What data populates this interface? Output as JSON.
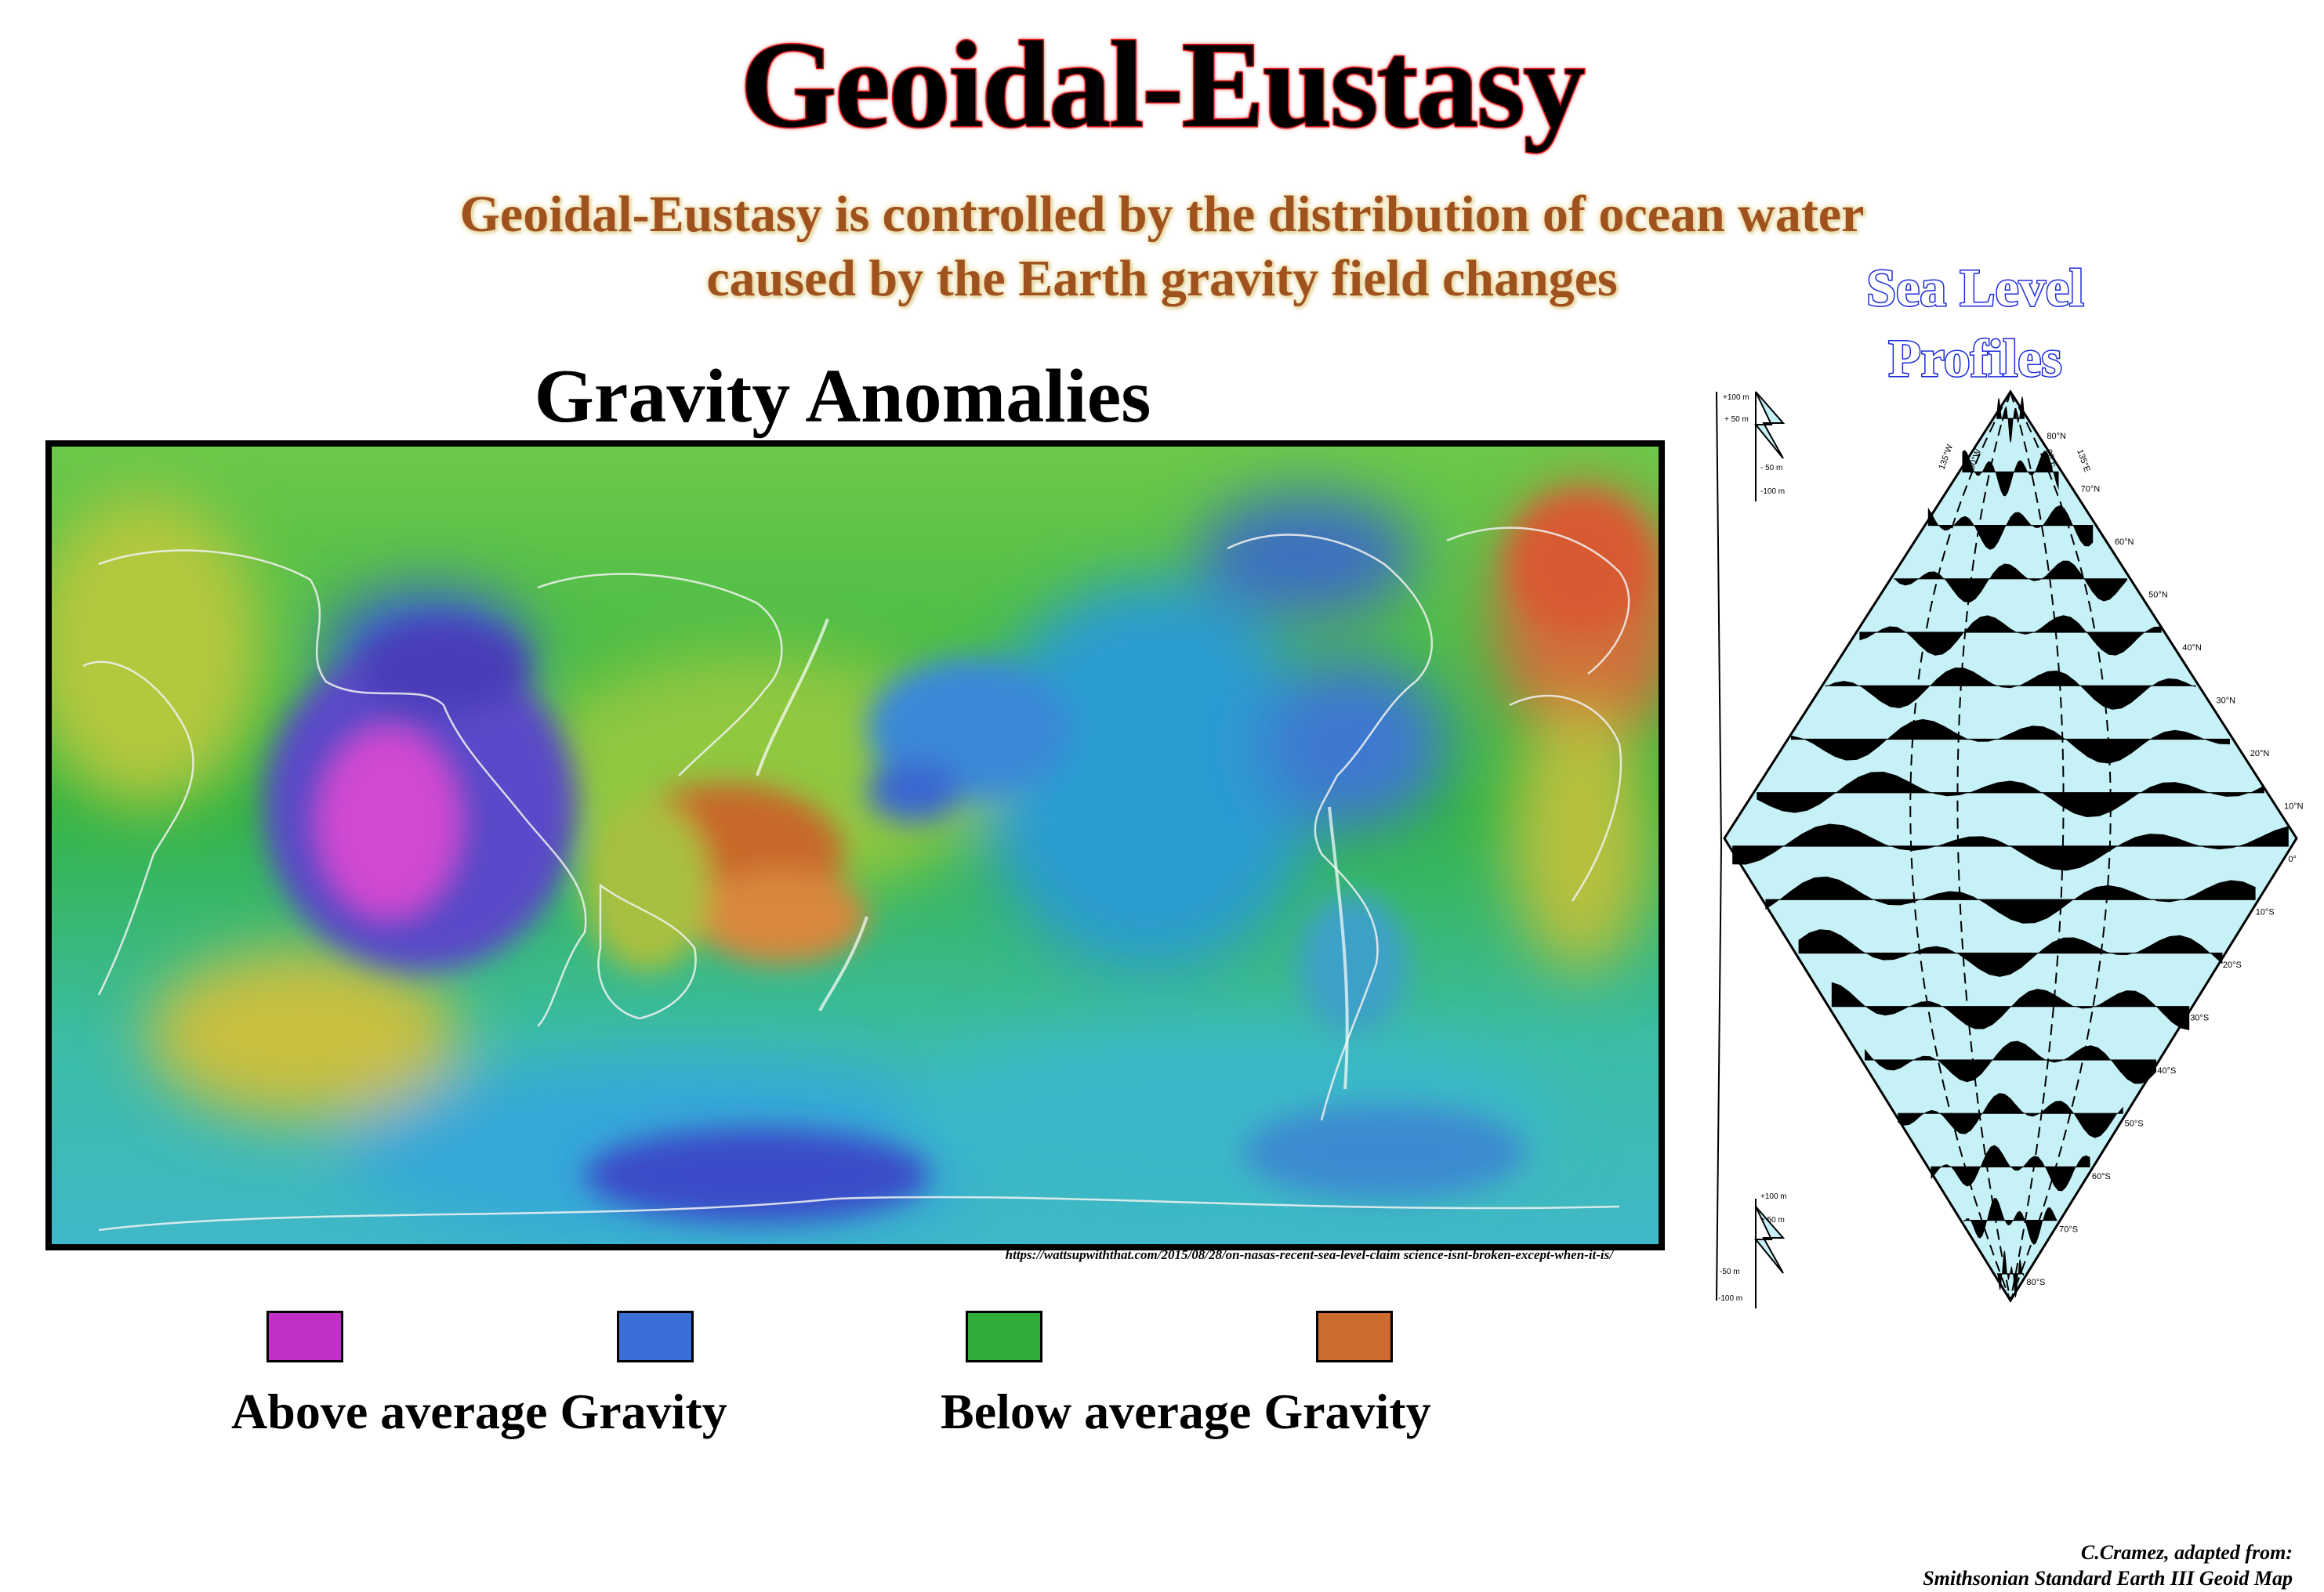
{
  "title": "Geoidal-Eustasy",
  "subtitle": {
    "line1": "Geoidal-Eustasy is controlled by the distribution of ocean water",
    "line2": "caused by the Earth gravity field changes"
  },
  "map": {
    "heading": "Gravity Anomalies",
    "source": "https://wattsupwiththat.com/2015/08/28/on-nasas-recent-sea-level-claim science-isnt-broken-except-when-it-is/"
  },
  "legend": {
    "swatches": [
      {
        "name": "magenta",
        "color": "#c030c8"
      },
      {
        "name": "blue",
        "color": "#3a6fd8"
      },
      {
        "name": "green",
        "color": "#2fae3a"
      },
      {
        "name": "orange",
        "color": "#cc6a30"
      }
    ],
    "above_label": "Above average Gravity",
    "below_label": "Below average Gravity"
  },
  "profiles": {
    "title_line1": "Sea Level",
    "title_line2": "Profiles",
    "fill_color": "#c6f1f6",
    "scale_top": [
      "+100 m",
      "+ 50 m",
      "- 50 m",
      "-100 m"
    ],
    "scale_bottom": [
      "+100 m",
      "+ 50 m",
      "-50 m",
      "-100 m"
    ],
    "meridian_labels": [
      "135°W",
      "90°W",
      "90°E",
      "135°E"
    ],
    "latitude_labels": [
      "80°N",
      "70°N",
      "60°N",
      "50°N",
      "40°N",
      "30°N",
      "20°N",
      "10°N",
      "0°",
      "10°S",
      "20°S",
      "30°S",
      "40°S",
      "50°S",
      "60°S",
      "70°S",
      "80°S"
    ]
  },
  "credit": {
    "line1": "C.Cramez, adapted from:",
    "line2": "Smithsonian Standard Earth III Geoid Map"
  }
}
